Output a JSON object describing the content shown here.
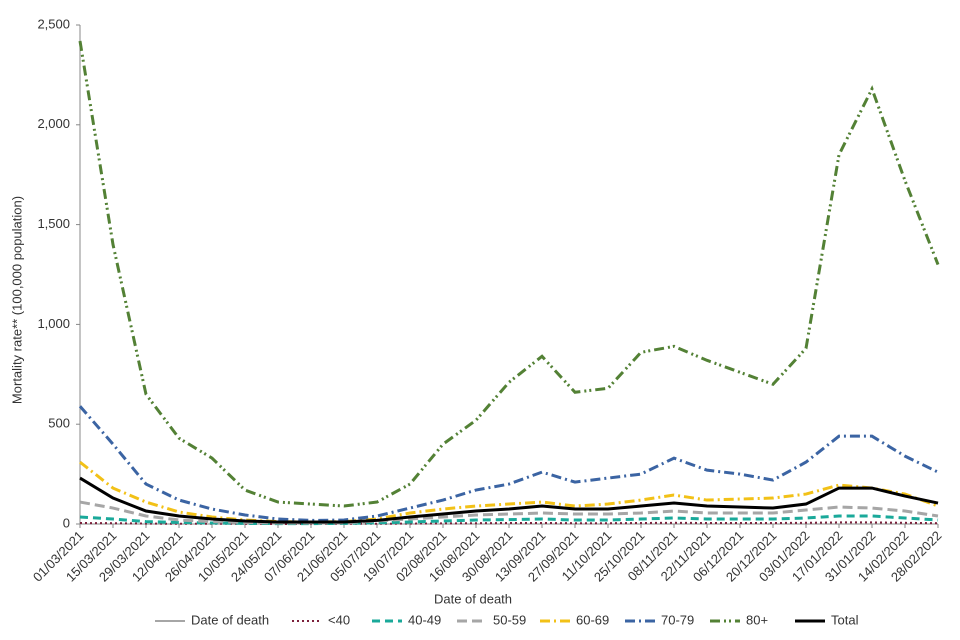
{
  "chart_data": {
    "type": "line",
    "x_label": "Date of death",
    "y_label": "Mortality rate** (100,000 population)",
    "x": [
      "01/03/2021",
      "15/03/2021",
      "29/03/2021",
      "12/04/2021",
      "26/04/2021",
      "10/05/2021",
      "24/05/2021",
      "07/06/2021",
      "21/06/2021",
      "05/07/2021",
      "19/07/2021",
      "02/08/2021",
      "16/08/2021",
      "30/08/2021",
      "13/09/2021",
      "27/09/2021",
      "11/10/2021",
      "25/10/2021",
      "08/11/2021",
      "22/11/2021",
      "06/12/2021",
      "20/12/2021",
      "03/01/2022",
      "17/01/2022",
      "31/01/2022",
      "14/02/2022",
      "28/02/2022"
    ],
    "ylim": [
      0,
      2500
    ],
    "yticks": [
      0,
      500,
      {
        "value": 1000,
        "label": "1,000"
      },
      {
        "value": 1500,
        "label": "1,500"
      },
      {
        "value": 2000,
        "label": "2,000"
      },
      {
        "value": 2500,
        "label": "2,500"
      }
    ],
    "series": [
      {
        "name": "Date of death",
        "color": "#a6a6a6",
        "values": [
          null,
          null,
          null,
          null,
          null,
          null,
          null,
          null,
          null,
          null,
          null,
          null,
          null,
          null,
          null,
          null,
          null,
          null,
          null,
          null,
          null,
          null,
          null,
          null,
          null,
          null,
          null
        ]
      },
      {
        "name": "<40",
        "color": "#7b1f3a",
        "values": [
          5,
          4,
          2,
          1,
          1,
          1,
          0,
          0,
          1,
          1,
          2,
          3,
          4,
          5,
          5,
          4,
          4,
          5,
          6,
          5,
          5,
          5,
          6,
          8,
          8,
          6,
          4
        ]
      },
      {
        "name": "40-49",
        "color": "#1aa99a",
        "values": [
          35,
          25,
          12,
          8,
          5,
          3,
          2,
          2,
          3,
          6,
          10,
          15,
          20,
          22,
          25,
          20,
          20,
          25,
          30,
          25,
          25,
          25,
          30,
          40,
          40,
          30,
          20
        ]
      },
      {
        "name": "50-59",
        "color": "#a6a6a6",
        "values": [
          110,
          80,
          40,
          20,
          12,
          8,
          5,
          5,
          6,
          15,
          25,
          35,
          45,
          50,
          55,
          50,
          50,
          55,
          65,
          55,
          55,
          55,
          70,
          85,
          80,
          65,
          40
        ]
      },
      {
        "name": "60-69",
        "color": "#f2c117",
        "values": [
          310,
          180,
          110,
          60,
          35,
          20,
          12,
          10,
          12,
          25,
          55,
          75,
          90,
          100,
          110,
          90,
          100,
          120,
          145,
          120,
          125,
          130,
          150,
          195,
          180,
          150,
          90
        ]
      },
      {
        "name": "70-79",
        "color": "#3b64a3",
        "values": [
          590,
          400,
          200,
          120,
          75,
          45,
          25,
          18,
          20,
          40,
          80,
          120,
          170,
          200,
          260,
          210,
          230,
          250,
          330,
          270,
          250,
          220,
          310,
          440,
          440,
          340,
          260
        ]
      },
      {
        "name": "80+",
        "color": "#538135",
        "values": [
          2420,
          1400,
          650,
          430,
          330,
          170,
          110,
          100,
          90,
          110,
          200,
          400,
          520,
          710,
          840,
          660,
          680,
          860,
          890,
          820,
          760,
          700,
          880,
          1850,
          2180,
          1720,
          1300
        ]
      },
      {
        "name": "Total",
        "color": "#000000",
        "values": [
          230,
          130,
          65,
          40,
          25,
          15,
          10,
          10,
          10,
          18,
          35,
          50,
          65,
          75,
          90,
          75,
          75,
          90,
          105,
          90,
          85,
          80,
          100,
          180,
          180,
          140,
          105
        ]
      }
    ]
  }
}
